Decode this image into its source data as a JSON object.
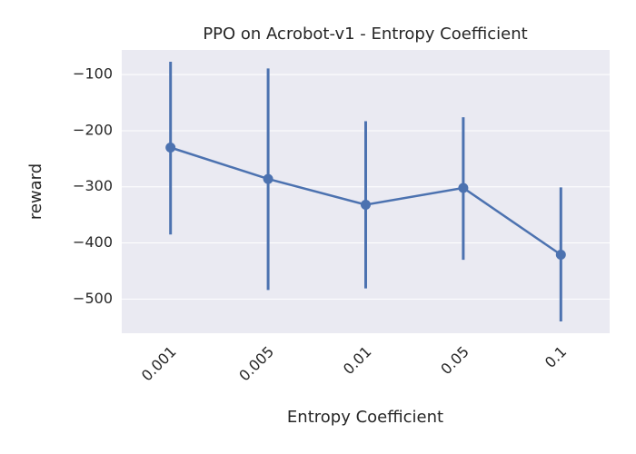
{
  "chart_data": {
    "type": "pointplot",
    "title": "PPO on Acrobot-v1 - Entropy Coefficient",
    "x_label": "Entropy Coefficient",
    "y_label": "reward",
    "categories": [
      "0.001",
      "0.005",
      "0.01",
      "0.05",
      "0.1"
    ],
    "values": [
      -230,
      -286,
      -332,
      -302,
      -421
    ],
    "ci_low": [
      -385,
      -484,
      -481,
      -430,
      -540
    ],
    "ci_high": [
      -77,
      -89,
      -183,
      -176,
      -301
    ],
    "color": "#4c72b0",
    "ylim": [
      -561,
      -56
    ],
    "yticks": [
      {
        "value": -100,
        "label": "−100"
      },
      {
        "value": -200,
        "label": "−200"
      },
      {
        "value": -300,
        "label": "−300"
      },
      {
        "value": -400,
        "label": "−400"
      },
      {
        "value": -500,
        "label": "−500"
      }
    ],
    "grid": true
  }
}
